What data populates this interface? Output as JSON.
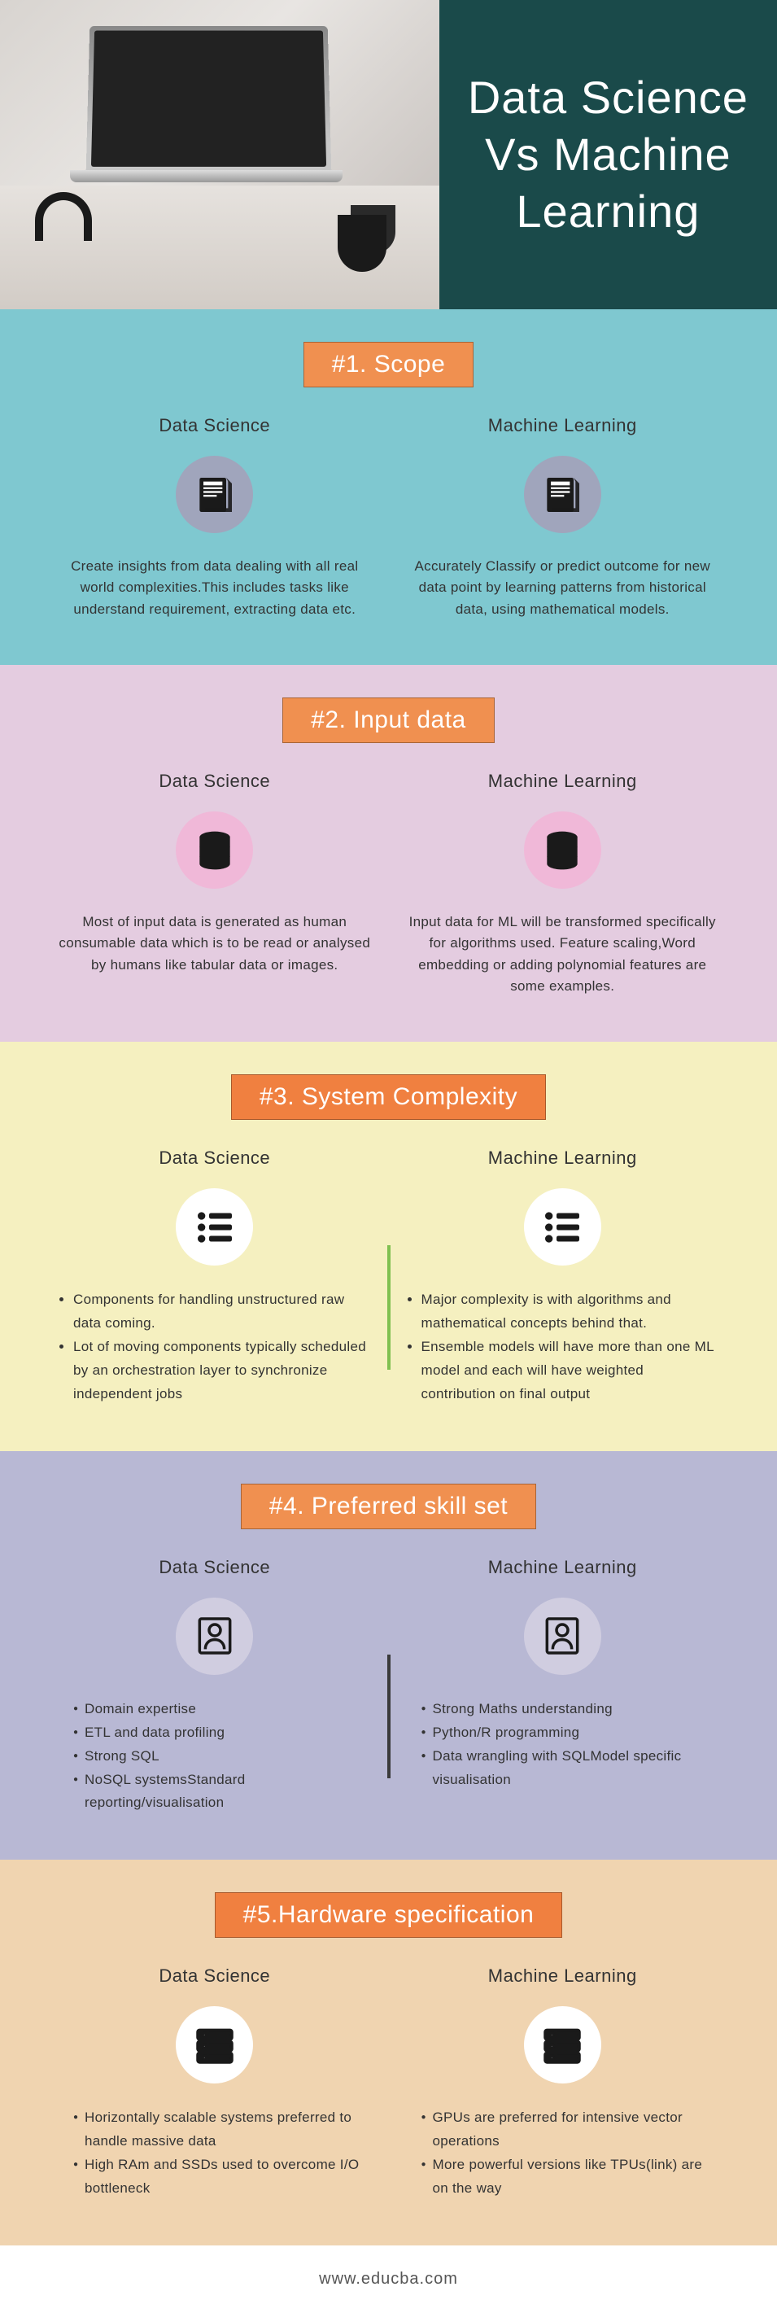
{
  "header": {
    "title": "Data Science Vs Machine Learning",
    "title_bg": "#1a4a4a",
    "title_color": "#ffffff"
  },
  "sections": [
    {
      "bg": "#7fc8d0",
      "title": "#1. Scope",
      "title_bg": "#f09050",
      "icon_bg": "#a0a5bc",
      "icon": "doc",
      "divider": null,
      "left": {
        "title": "Data Science",
        "text": "Create insights from data dealing with all real world complexities.This includes tasks like understand requirement, extracting data etc."
      },
      "right": {
        "title": "Machine Learning",
        "text": "Accurately Classify or predict outcome for new data point by learning patterns from historical data, using mathematical models."
      }
    },
    {
      "bg": "#e4cce0",
      "title": "#2. Input data",
      "title_bg": "#f09050",
      "icon_bg": "#f0b8d8",
      "icon": "db",
      "divider": null,
      "left": {
        "title": "Data Science",
        "text": "Most of input data is generated as human consumable data which is to be read or analysed by humans like tabular data or images."
      },
      "right": {
        "title": "Machine Learning",
        "text": "Input data for ML will be transformed specifically  for algorithms used. Feature scaling,Word embedding or adding polynomial features are some examples."
      }
    },
    {
      "bg": "#f5f0c0",
      "title": "#3. System Complexity",
      "title_bg": "#f08040",
      "icon_bg": "#ffffff",
      "icon": "list",
      "divider": "#7fc050",
      "left": {
        "title": "Data Science",
        "bullets": [
          "Components for handling unstructured raw data coming.",
          "Lot of moving components typically scheduled by an orchestration layer to synchronize independent jobs"
        ]
      },
      "right": {
        "title": "Machine Learning",
        "bullets": [
          "Major complexity is with algorithms and mathematical concepts behind that.",
          "Ensemble models will have more than one ML model and each will have weighted contribution on final output"
        ]
      }
    },
    {
      "bg": "#b8b8d4",
      "title": "#4. Preferred skill set",
      "title_bg": "#f09050",
      "icon_bg": "#d0cde0",
      "icon": "person",
      "divider": "#3a3a3a",
      "left": {
        "title": "Data Science",
        "bullets_dot": [
          "Domain expertise",
          "ETL and data profiling",
          "Strong SQL",
          "NoSQL systemsStandard reporting/visualisation"
        ]
      },
      "right": {
        "title": "Machine Learning",
        "bullets_dot": [
          "Strong Maths understanding",
          "Python/R programming",
          "Data wrangling with SQLModel specific visualisation"
        ]
      }
    },
    {
      "bg": "#f0d4b0",
      "title": "#5.Hardware specification",
      "title_bg": "#f08040",
      "icon_bg": "#ffffff",
      "icon": "server",
      "divider": null,
      "left": {
        "title": "Data Science",
        "bullets_dot": [
          "Horizontally scalable systems preferred to handle massive data",
          "High RAm and SSDs used to overcome I/O bottleneck"
        ]
      },
      "right": {
        "title": "Machine Learning",
        "bullets_dot": [
          "GPUs are preferred for intensive vector operations",
          "More powerful versions like TPUs(link) are on the way"
        ]
      }
    }
  ],
  "footer": "www.educba.com"
}
